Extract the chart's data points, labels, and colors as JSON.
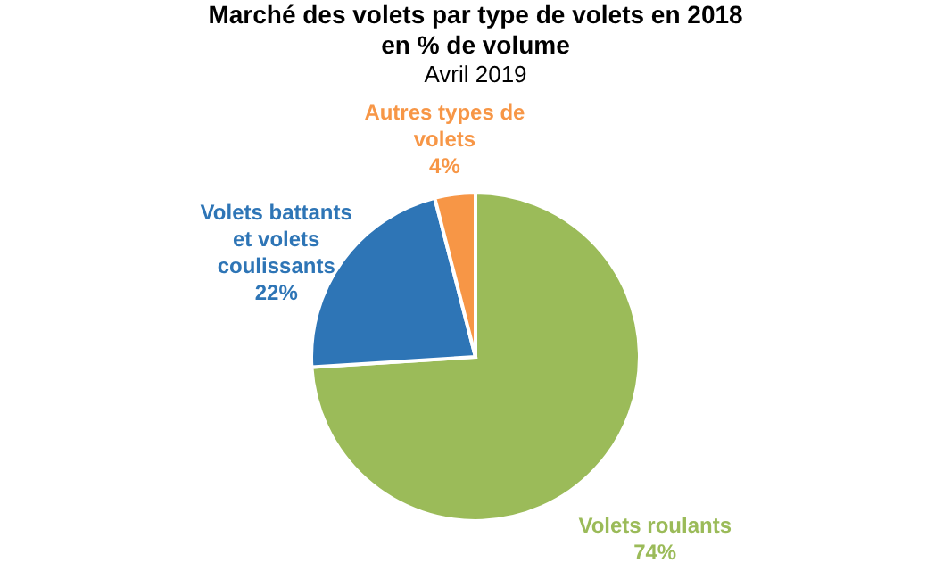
{
  "chart_data": {
    "type": "pie",
    "title": "Marché des volets par type de volets en 2018\nen % de volume",
    "subtitle": "Avril 2019",
    "categories": [
      "Volets roulants",
      "Volets battants et volets coulissants",
      "Autres types de volets"
    ],
    "values": [
      74,
      22,
      4
    ],
    "colors": [
      "#9bbb59",
      "#2e75b6",
      "#f79646"
    ],
    "value_labels": [
      "74%",
      "22%",
      "4%"
    ],
    "legend": false
  }
}
